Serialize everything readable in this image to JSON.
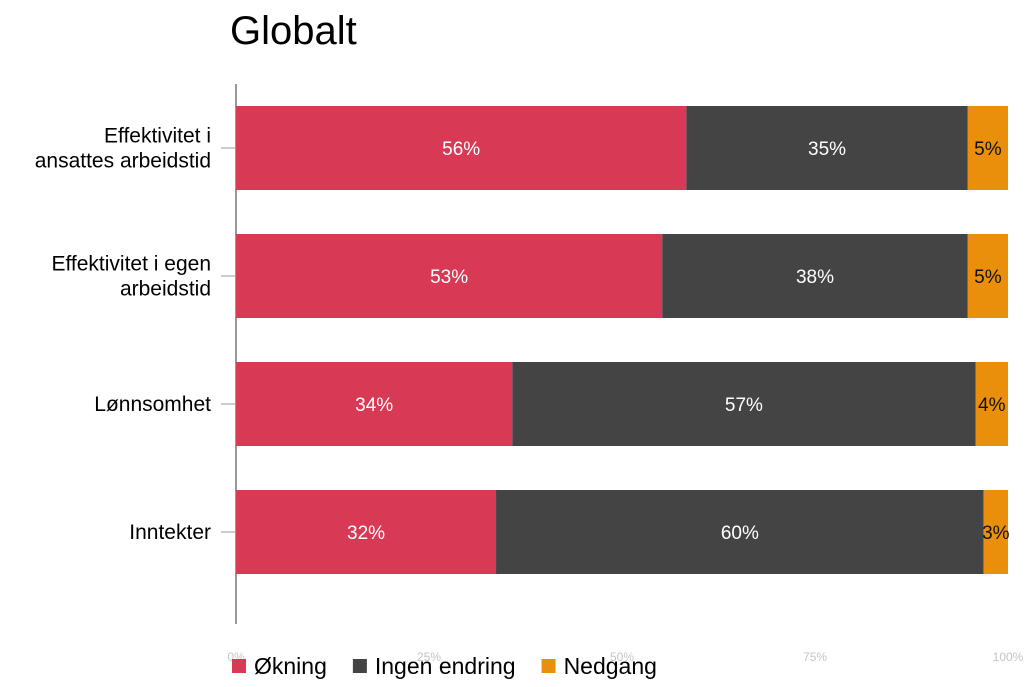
{
  "chart_data": {
    "type": "bar",
    "orientation": "horizontal",
    "stacked": true,
    "title": "Globalt",
    "categories": [
      [
        "Effektivitet i",
        "ansattes arbeidstid"
      ],
      [
        "Effektivitet i egen",
        "arbeidstid"
      ],
      [
        "Lønnsomhet"
      ],
      [
        "Inntekter"
      ]
    ],
    "series": [
      {
        "name": "Økning",
        "color": "#d83a55",
        "label_color": "#ffffff",
        "values": [
          56,
          53,
          34,
          32
        ],
        "labels": [
          "56%",
          "53%",
          "34%",
          "32%"
        ]
      },
      {
        "name": "Ingen endring",
        "color": "#444444",
        "label_color": "#ffffff",
        "values": [
          35,
          38,
          57,
          60
        ],
        "labels": [
          "35%",
          "38%",
          "57%",
          "60%"
        ]
      },
      {
        "name": "Nedgang",
        "color": "#ea8f0c",
        "label_color": "#111111",
        "values": [
          5,
          5,
          4,
          3
        ],
        "labels": [
          "5%",
          "5%",
          "4%",
          "3%"
        ]
      }
    ],
    "xlim": [
      0,
      100
    ],
    "x_ticks": [
      0,
      25,
      50,
      75,
      100
    ],
    "x_tick_labels": [
      "0%",
      "25%",
      "50%",
      "75%",
      "100%"
    ],
    "grid": false,
    "legend_position": "bottom-left"
  }
}
